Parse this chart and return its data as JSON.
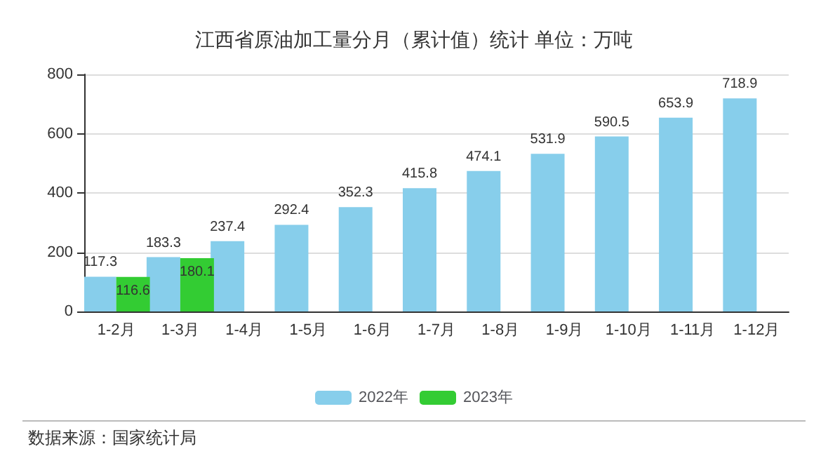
{
  "chart_data": {
    "type": "bar",
    "title": "江西省原油加工量分月（累计值）统计 单位：万吨",
    "categories": [
      "1-2月",
      "1-3月",
      "1-4月",
      "1-5月",
      "1-6月",
      "1-7月",
      "1-8月",
      "1-9月",
      "1-10月",
      "1-11月",
      "1-12月"
    ],
    "series": [
      {
        "name": "2022年",
        "color": "#87ceeb",
        "values": [
          117.3,
          183.3,
          237.4,
          292.4,
          352.3,
          415.8,
          474.1,
          531.9,
          590.5,
          653.9,
          718.9
        ]
      },
      {
        "name": "2023年",
        "color": "#33cc33",
        "values": [
          116.6,
          180.1,
          null,
          null,
          null,
          null,
          null,
          null,
          null,
          null,
          null
        ]
      }
    ],
    "ylim": [
      0,
      800
    ],
    "yticks": [
      0,
      200,
      400,
      600,
      800
    ],
    "grid": "y",
    "legend": "bottom",
    "data_labels": true,
    "annotations": [
      "数据来源：国家统计局"
    ]
  }
}
